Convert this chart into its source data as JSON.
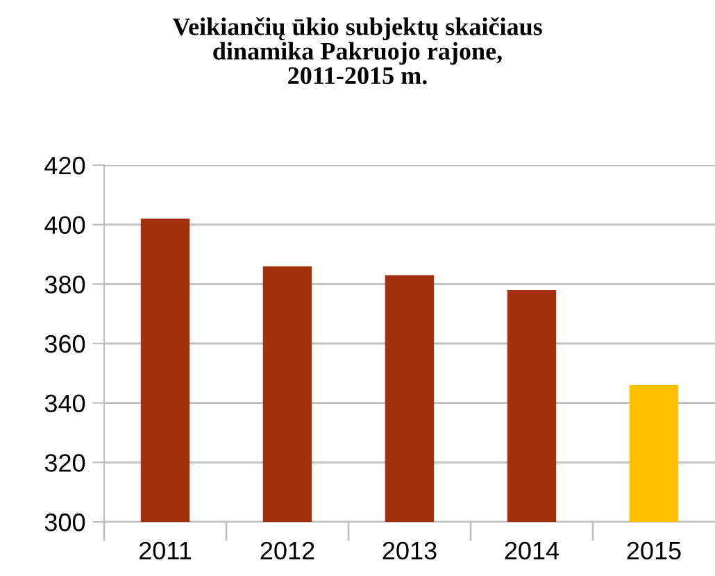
{
  "chart_data": {
    "type": "bar",
    "title": "Veikiančių ūkio subjektų skaičiaus\ndinamika Pakruojo rajone,\n2011-2015 m.",
    "categories": [
      "2011",
      "2012",
      "2013",
      "2014",
      "2015"
    ],
    "values": [
      402,
      386,
      383,
      378,
      346
    ],
    "colors": [
      "#a33011",
      "#a33011",
      "#a33011",
      "#a33011",
      "#ffc000"
    ],
    "ylim": [
      300,
      420
    ],
    "yticks": [
      300,
      320,
      340,
      360,
      380,
      400,
      420
    ],
    "grid": "y",
    "legend": false
  }
}
